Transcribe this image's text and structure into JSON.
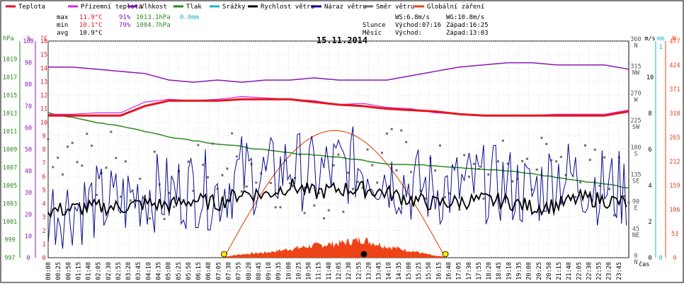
{
  "chart_data": {
    "type": "line",
    "title": "15.11.2014",
    "legend": [
      {
        "label": "Teplota",
        "color": "#e8141e"
      },
      {
        "label": "Přízemní teplota",
        "color": "#d22ad8"
      },
      {
        "label": "Vlhkost",
        "color": "#8a17b5"
      },
      {
        "label": "Tlak",
        "color": "#2a8a1e"
      },
      {
        "label": "Srážky",
        "color": "#1fb1d0"
      },
      {
        "label": "Rychlost větru",
        "color": "#000000"
      },
      {
        "label": "Náraz větru",
        "color": "#0b0b8c"
      },
      {
        "label": "Směr větru",
        "color": "#6e6e6e"
      },
      {
        "label": "Globální záření",
        "color": "#ee4316"
      }
    ],
    "stats": {
      "max": {
        "label": "max",
        "temp": "11.9°C",
        "hum": "91%",
        "press": "1013.1hPa",
        "rain": "0.0mm"
      },
      "min": {
        "label": "min",
        "temp": "10.1°C",
        "hum": "79%",
        "press": "1004.7hPa"
      },
      "avg": {
        "label": "avg",
        "temp": "10.9°C"
      }
    },
    "wind": {
      "ws": "WS:6.8m/s",
      "wg": "WG:10.8m/s"
    },
    "sun": {
      "label": "Slunce",
      "rise": "Východ:07:16",
      "set": "Západ:16:25"
    },
    "moon": {
      "label": "Měsíc",
      "rise": "Východ:",
      "set": "Západ:13:03"
    },
    "axes": {
      "left_units": [
        "hPa",
        "%",
        "°C"
      ],
      "right_units": [
        "m/s",
        "mm",
        "W"
      ],
      "xlabel": "čas",
      "pressure_ticks": [
        "997",
        "999",
        "1001",
        "1003",
        "1005",
        "1007",
        "1009",
        "1011",
        "1013",
        "1015",
        "1017",
        "1019"
      ],
      "humidity_ticks": [
        "0",
        "10",
        "20",
        "30",
        "40",
        "50",
        "60",
        "70",
        "80",
        "90",
        "100"
      ],
      "temp_ticks": [
        "0",
        "1",
        "2",
        "3",
        "4",
        "5",
        "6",
        "7",
        "8",
        "9",
        "10",
        "11",
        "12",
        "13",
        "14",
        "15",
        "16"
      ],
      "direction_ticks": [
        "0",
        "45",
        "90",
        "135",
        "180",
        "225",
        "270",
        "315",
        "360"
      ],
      "direction_labels": [
        "N",
        "NE",
        "E",
        "SE",
        "S",
        "SW",
        "W",
        "NW",
        "N"
      ],
      "wind_ticks": [
        "0",
        "2",
        "4",
        "6",
        "8",
        "10"
      ],
      "rain_ticks": [
        "0",
        "1"
      ],
      "radiation_ticks": [
        "0",
        "53",
        "106",
        "159",
        "212",
        "265",
        "318",
        "371",
        "424",
        "477"
      ],
      "time_ticks": [
        "00:00",
        "00:25",
        "00:50",
        "01:15",
        "01:40",
        "02:05",
        "02:30",
        "02:55",
        "03:20",
        "03:45",
        "04:10",
        "04:35",
        "05:00",
        "05:25",
        "05:50",
        "06:15",
        "06:40",
        "07:05",
        "07:30",
        "07:55",
        "08:20",
        "08:45",
        "09:10",
        "09:35",
        "10:00",
        "10:25",
        "10:50",
        "11:15",
        "11:40",
        "12:05",
        "12:30",
        "12:55",
        "13:20",
        "13:45",
        "14:10",
        "14:35",
        "15:00",
        "15:25",
        "15:50",
        "16:15",
        "16:40",
        "17:05",
        "17:30",
        "17:55",
        "18:20",
        "18:45",
        "19:10",
        "19:35",
        "20:00",
        "20:25",
        "20:50",
        "21:15",
        "21:40",
        "22:05",
        "22:30",
        "22:55",
        "23:20",
        "23:45"
      ]
    },
    "series_hourly": {
      "hours": [
        0,
        1,
        2,
        3,
        4,
        5,
        6,
        7,
        8,
        9,
        10,
        11,
        12,
        13,
        14,
        15,
        16,
        17,
        18,
        19,
        20,
        21,
        22,
        23,
        24
      ],
      "temperature_c": [
        10.5,
        10.5,
        10.5,
        10.5,
        11.2,
        11.6,
        11.6,
        11.6,
        11.7,
        11.7,
        11.7,
        11.5,
        11.3,
        11.2,
        11.0,
        10.9,
        10.8,
        10.6,
        10.5,
        10.5,
        10.5,
        10.5,
        10.5,
        10.5,
        10.8
      ],
      "ground_temp_c": [
        10.6,
        10.6,
        10.7,
        10.7,
        11.5,
        11.7,
        11.6,
        11.7,
        11.9,
        11.8,
        11.7,
        11.6,
        11.3,
        11.4,
        11.1,
        11.0,
        10.7,
        10.6,
        10.5,
        10.5,
        10.5,
        10.6,
        10.6,
        10.6,
        10.9
      ],
      "humidity_pct": [
        88,
        88,
        87,
        86,
        85,
        82,
        81,
        82,
        81,
        82,
        82,
        83,
        82,
        82,
        82,
        84,
        86,
        88,
        89,
        90,
        90,
        89,
        89,
        89,
        87
      ],
      "pressure_hpa": [
        1013.1,
        1012.5,
        1012.0,
        1011.6,
        1011.0,
        1010.4,
        1010.0,
        1009.6,
        1009.3,
        1008.9,
        1008.6,
        1008.4,
        1008.1,
        1007.8,
        1007.4,
        1007.3,
        1007.2,
        1007.0,
        1006.8,
        1006.6,
        1006.3,
        1005.9,
        1005.5,
        1005.2,
        1004.7
      ],
      "wind_speed_ms": [
        2.6,
        2.7,
        2.8,
        2.8,
        3.0,
        2.9,
        3.2,
        3.0,
        3.6,
        3.5,
        4.0,
        3.6,
        3.8,
        3.8,
        3.6,
        3.2,
        3.0,
        3.1,
        3.2,
        3.1,
        2.8,
        2.9,
        3.3,
        3.2,
        3.0
      ],
      "wind_gust_ms": [
        4.1,
        4.3,
        4.5,
        4.5,
        5.2,
        5.0,
        5.4,
        5.1,
        6.2,
        5.9,
        6.6,
        6.0,
        6.5,
        6.6,
        6.1,
        5.5,
        5.3,
        5.4,
        5.6,
        5.5,
        5.0,
        6.2,
        5.8,
        5.4,
        5.2
      ],
      "radiation_wm2": [
        0,
        0,
        0,
        0,
        0,
        0,
        0,
        0,
        8,
        12,
        20,
        28,
        33,
        42,
        26,
        16,
        4,
        0,
        0,
        0,
        0,
        0,
        0,
        0,
        0
      ],
      "rain_mm": [
        0,
        0,
        0,
        0,
        0,
        0,
        0,
        0,
        0,
        0,
        0,
        0,
        0,
        0,
        0,
        0,
        0,
        0,
        0,
        0,
        0,
        0,
        0,
        0,
        0
      ]
    },
    "ylim": {
      "pressure": [
        997,
        1021
      ],
      "humidity": [
        0,
        100
      ],
      "temp": [
        0,
        16
      ],
      "direction": [
        0,
        360
      ],
      "wind": [
        0,
        12
      ],
      "radiation": [
        0,
        477
      ]
    },
    "grid": true
  }
}
